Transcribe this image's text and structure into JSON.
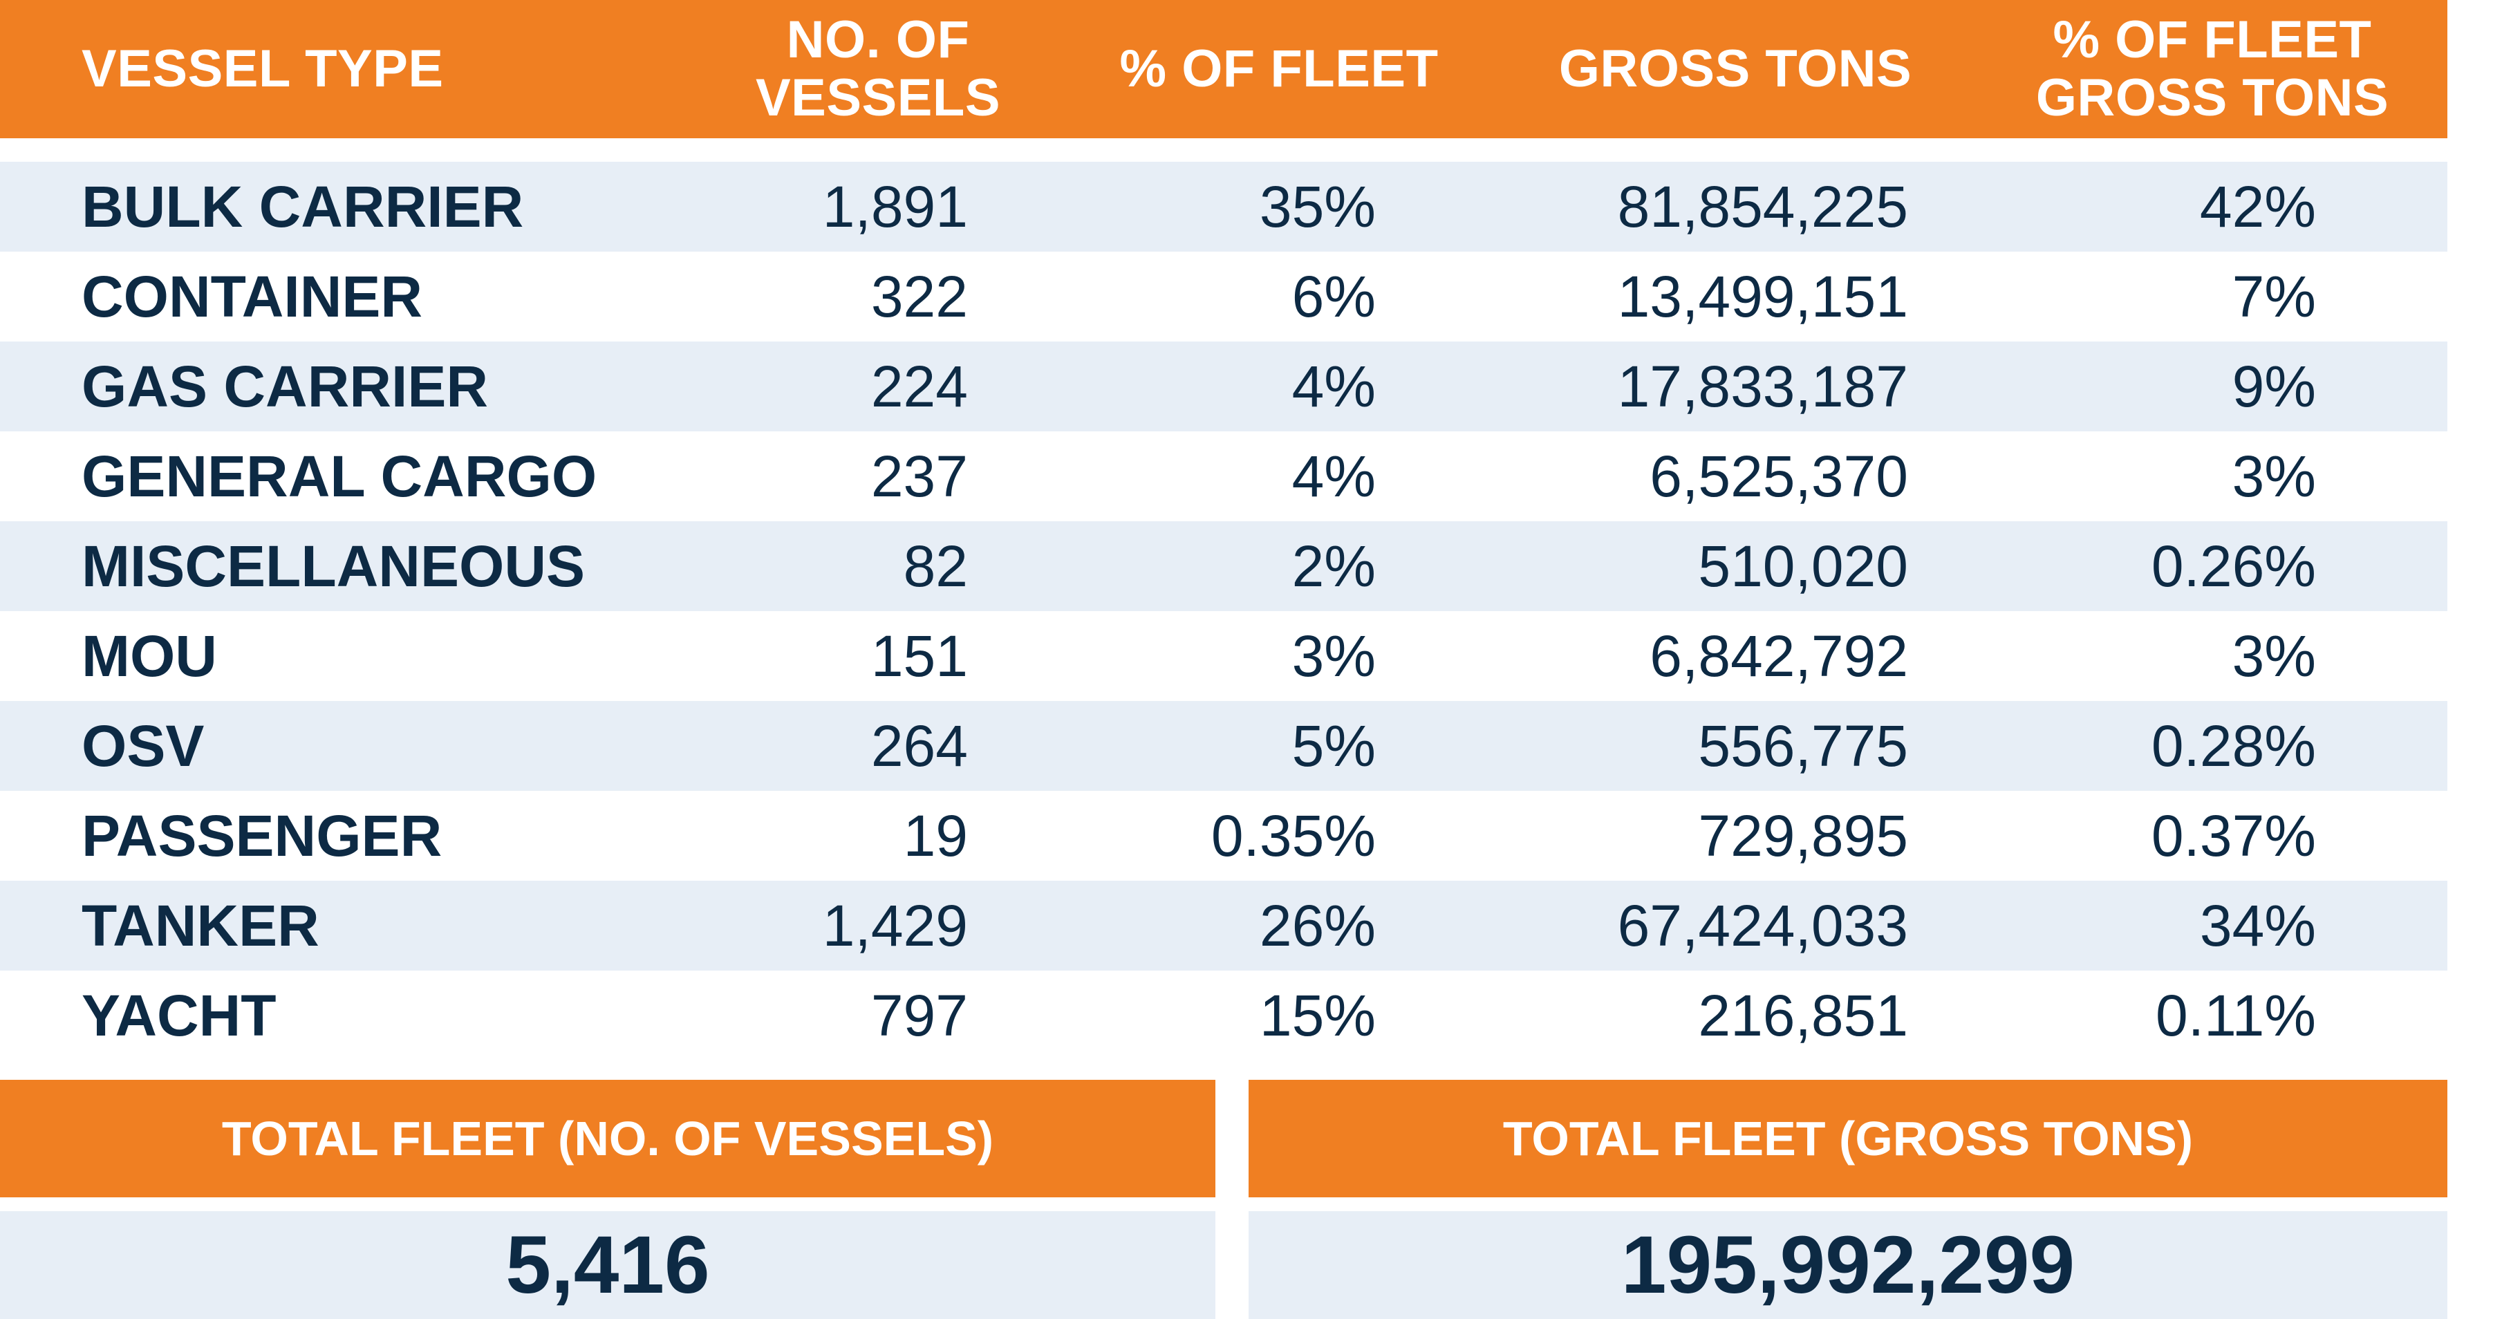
{
  "header": {
    "vessel_type": "VESSEL TYPE",
    "no_of_vessels_line1": "NO. OF",
    "no_of_vessels_line2": "VESSELS",
    "pct_of_fleet": "% OF FLEET",
    "gross_tons": "GROSS TONS",
    "pct_fleet_gross_line1": "% OF FLEET",
    "pct_fleet_gross_line2": "GROSS TONS"
  },
  "rows": [
    {
      "type": "BULK CARRIER",
      "vessels": "1,891",
      "pct_fleet": "35%",
      "gross_tons": "81,854,225",
      "pct_gross": "42%"
    },
    {
      "type": "CONTAINER",
      "vessels": "322",
      "pct_fleet": "6%",
      "gross_tons": "13,499,151",
      "pct_gross": "7%"
    },
    {
      "type": "GAS CARRIER",
      "vessels": "224",
      "pct_fleet": "4%",
      "gross_tons": "17,833,187",
      "pct_gross": "9%"
    },
    {
      "type": "GENERAL CARGO",
      "vessels": "237",
      "pct_fleet": "4%",
      "gross_tons": "6,525,370",
      "pct_gross": "3%"
    },
    {
      "type": "MISCELLANEOUS",
      "vessels": "82",
      "pct_fleet": "2%",
      "gross_tons": "510,020",
      "pct_gross": "0.26%"
    },
    {
      "type": "MOU",
      "vessels": "151",
      "pct_fleet": "3%",
      "gross_tons": "6,842,792",
      "pct_gross": "3%"
    },
    {
      "type": "OSV",
      "vessels": "264",
      "pct_fleet": "5%",
      "gross_tons": "556,775",
      "pct_gross": "0.28%"
    },
    {
      "type": "PASSENGER",
      "vessels": "19",
      "pct_fleet": "0.35%",
      "gross_tons": "729,895",
      "pct_gross": "0.37%"
    },
    {
      "type": "TANKER",
      "vessels": "1,429",
      "pct_fleet": "26%",
      "gross_tons": "67,424,033",
      "pct_gross": "34%"
    },
    {
      "type": "YACHT",
      "vessels": "797",
      "pct_fleet": "15%",
      "gross_tons": "216,851",
      "pct_gross": "0.11%"
    }
  ],
  "totals": {
    "vessels_label": "TOTAL FLEET (NO. OF VESSELS)",
    "vessels_value": "5,416",
    "gross_label": "TOTAL FLEET (GROSS TONS)",
    "gross_value": "195,992,299"
  },
  "colors": {
    "accent": "#f07f22",
    "row_shade": "#e7eef6",
    "text": "#0d2a44"
  }
}
